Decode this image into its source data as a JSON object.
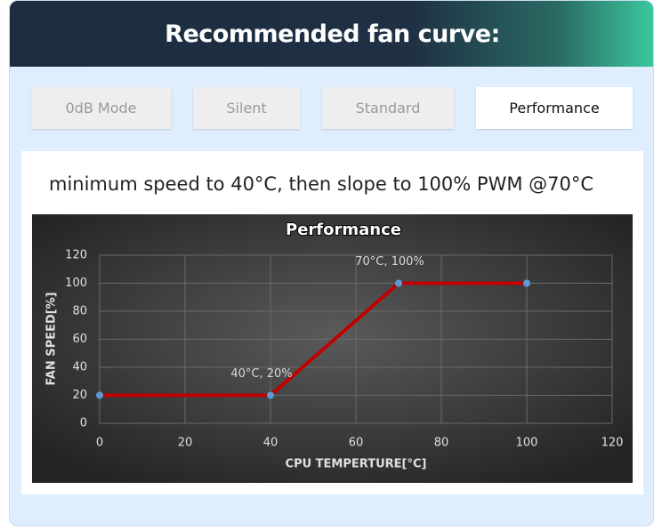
{
  "header": {
    "title": "Recommended fan curve:"
  },
  "tabs": [
    "0dB Mode",
    "Silent",
    "Standard",
    "Performance"
  ],
  "active_tab": 3,
  "description": "minimum speed to 40°C, then slope to 100% PWM @70°C",
  "chart_data": {
    "type": "line",
    "title": "Performance",
    "x_label": "CPU TEMPERTURE[°C]",
    "y_label": "FAN SPEED[%]",
    "x": [
      0,
      40,
      70,
      100
    ],
    "series": [
      {
        "name": "Performance",
        "color": "#c00000",
        "marker_color": "#5b9bd5",
        "values": [
          20,
          20,
          100,
          100
        ],
        "value_labels": [
          null,
          "40°C, 20%",
          "70°C, 100%",
          null
        ]
      }
    ],
    "xlim": [
      0,
      120
    ],
    "xticks": [
      0,
      20,
      40,
      60,
      80,
      100,
      120
    ],
    "ylim": [
      0,
      120
    ],
    "yticks": [
      0,
      20,
      40,
      60,
      80,
      100,
      120
    ],
    "grid": true
  }
}
